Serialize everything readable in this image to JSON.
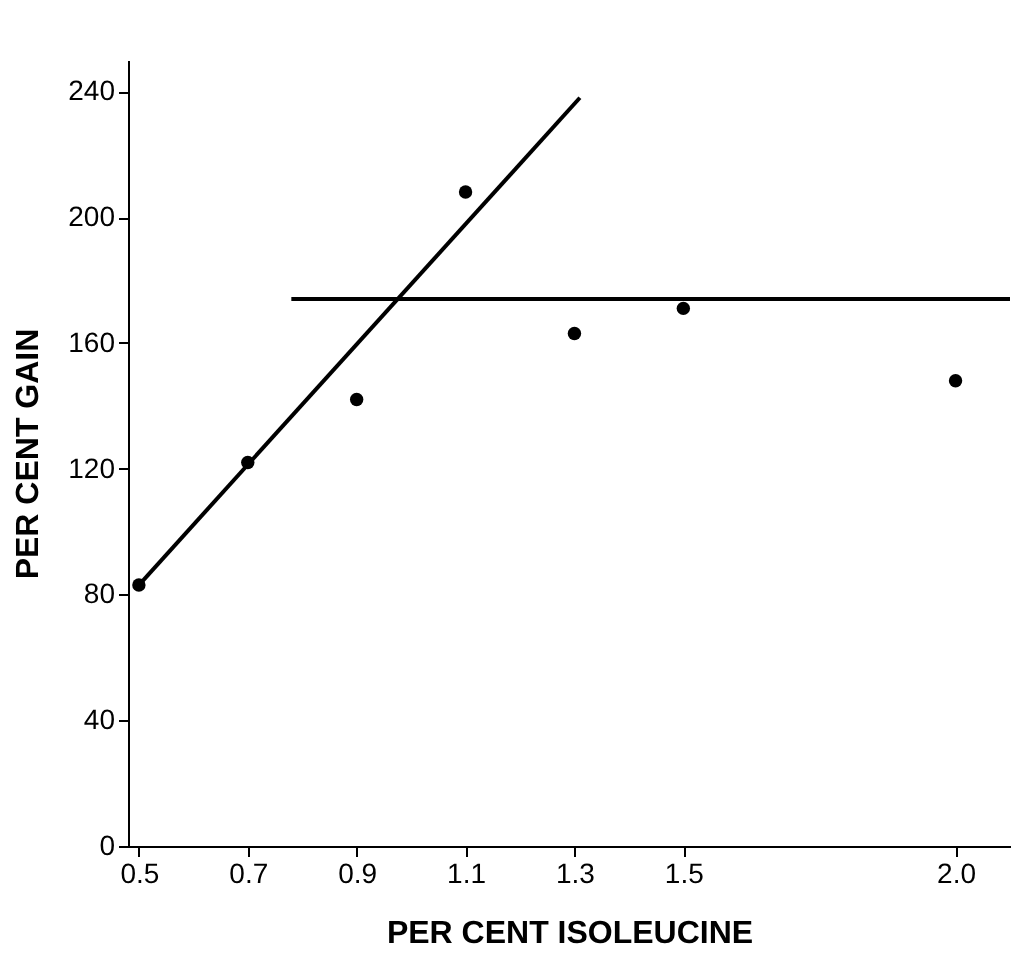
{
  "chart_data": {
    "type": "scatter",
    "xlabel": "PER CENT ISOLEUCINE",
    "ylabel": "PER CENT GAIN",
    "xlim": [
      0.48,
      2.1
    ],
    "xticks": [
      0.5,
      0.7,
      0.9,
      1.1,
      1.3,
      1.5,
      {
        "value": 2,
        "label": "2.0"
      }
    ],
    "ylim": [
      0,
      250
    ],
    "yticks": [
      0,
      40,
      80,
      120,
      160,
      200,
      240
    ],
    "grid": false,
    "series": [
      {
        "marker": "circle",
        "color": "#000000",
        "x": [
          0.5,
          0.7,
          0.9,
          1.1,
          1.3,
          1.5,
          2.0
        ],
        "values": [
          83,
          122,
          142,
          208,
          163,
          171,
          148
        ]
      },
      {
        "type": "line",
        "color": "#000000",
        "line_style": "solid",
        "x": [
          0.5,
          1.31
        ],
        "values": [
          83,
          238
        ]
      },
      {
        "type": "line",
        "color": "#000000",
        "line_style": "solid",
        "x": [
          0.78,
          2.1
        ],
        "values": [
          174,
          174
        ]
      }
    ]
  }
}
